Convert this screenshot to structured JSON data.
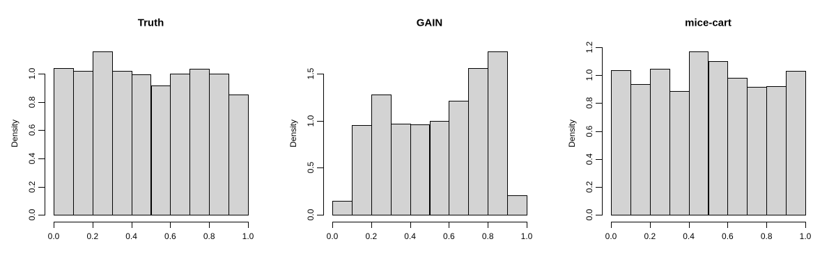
{
  "figure": {
    "background": "#ffffff",
    "text_color": "#000000",
    "bar_fill": "#d3d3d3",
    "bar_border": "#000000"
  },
  "chart_data": [
    {
      "type": "bar",
      "subtype": "histogram",
      "title": "Truth",
      "xlabel": "",
      "ylabel": "Density",
      "bin_start": 0.0,
      "bin_width": 0.1,
      "values": [
        1.04,
        1.02,
        1.16,
        1.02,
        0.995,
        0.92,
        1.0,
        1.035,
        1.0,
        0.855
      ],
      "xlim": [
        0.0,
        1.0
      ],
      "ylim": [
        0,
        1.16
      ],
      "x_ticks": [
        0.0,
        0.2,
        0.4,
        0.6,
        0.8,
        1.0
      ],
      "x_tick_labels": [
        "0.0",
        "0.2",
        "0.4",
        "0.6",
        "0.8",
        "1.0"
      ],
      "y_ticks": [
        0.0,
        0.2,
        0.4,
        0.6,
        0.8,
        1.0
      ],
      "y_tick_labels": [
        "0.0",
        "0.2",
        "0.4",
        "0.6",
        "0.8",
        "1.0"
      ],
      "grid": false,
      "legend": null
    },
    {
      "type": "bar",
      "subtype": "histogram",
      "title": "GAIN",
      "xlabel": "",
      "ylabel": "Density",
      "bin_start": 0.0,
      "bin_width": 0.1,
      "values": [
        0.15,
        0.95,
        1.275,
        0.965,
        0.96,
        0.995,
        1.21,
        1.56,
        1.735,
        0.21
      ],
      "xlim": [
        0.0,
        1.0
      ],
      "ylim": [
        0,
        1.735
      ],
      "x_ticks": [
        0.0,
        0.2,
        0.4,
        0.6,
        0.8,
        1.0
      ],
      "x_tick_labels": [
        "0.0",
        "0.2",
        "0.4",
        "0.6",
        "0.8",
        "1.0"
      ],
      "y_ticks": [
        0.0,
        0.5,
        1.0,
        1.5
      ],
      "y_tick_labels": [
        "0.0",
        "0.5",
        "1.0",
        "1.5"
      ],
      "grid": false,
      "legend": null
    },
    {
      "type": "bar",
      "subtype": "histogram",
      "title": "mice-cart",
      "xlabel": "",
      "ylabel": "Density",
      "bin_start": 0.0,
      "bin_width": 0.1,
      "values": [
        1.035,
        0.935,
        1.045,
        0.885,
        1.17,
        1.1,
        0.98,
        0.915,
        0.92,
        1.03
      ],
      "xlim": [
        0.0,
        1.0
      ],
      "ylim": [
        0,
        1.17
      ],
      "x_ticks": [
        0.0,
        0.2,
        0.4,
        0.6,
        0.8,
        1.0
      ],
      "x_tick_labels": [
        "0.0",
        "0.2",
        "0.4",
        "0.6",
        "0.8",
        "1.0"
      ],
      "y_ticks": [
        0.0,
        0.2,
        0.4,
        0.6,
        0.8,
        1.0,
        1.2
      ],
      "y_tick_labels": [
        "0.0",
        "0.2",
        "0.4",
        "0.6",
        "0.8",
        "1.0",
        "1.2"
      ],
      "grid": false,
      "legend": null
    }
  ]
}
